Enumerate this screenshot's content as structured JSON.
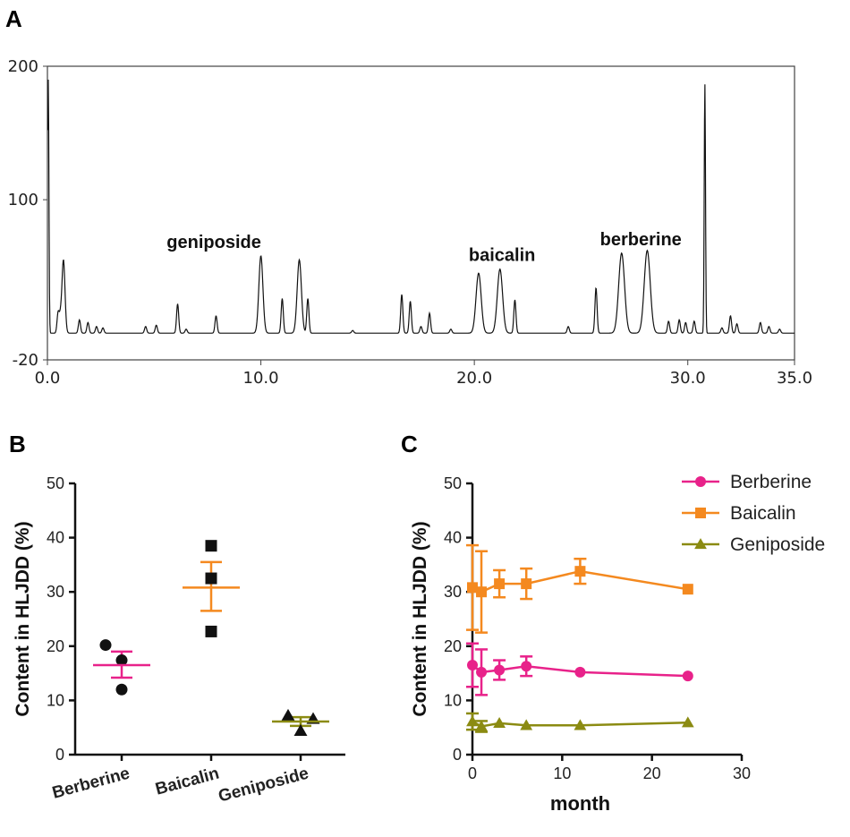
{
  "chart_data": [
    {
      "panel": "A",
      "type": "line",
      "title": "",
      "xlabel": "",
      "ylabel": "",
      "xlim": [
        0,
        35
      ],
      "ylim": [
        -20,
        200
      ],
      "xticks": [
        "0.0",
        "10.0",
        "20.0",
        "30.0",
        "35.0"
      ],
      "xtick_values": [
        0,
        10,
        20,
        30,
        35
      ],
      "yticks": [
        "-20",
        "100",
        "200"
      ],
      "ytick_values": [
        -20,
        100,
        200
      ],
      "baseline": 0,
      "peaks": [
        {
          "t": 0.5,
          "h": 15
        },
        {
          "t": 0.6,
          "h": 10
        },
        {
          "t": 0.75,
          "h": 55
        },
        {
          "t": 1.5,
          "h": 10
        },
        {
          "t": 1.9,
          "h": 8
        },
        {
          "t": 2.3,
          "h": 5
        },
        {
          "t": 2.6,
          "h": 4
        },
        {
          "t": 4.6,
          "h": 5
        },
        {
          "t": 5.1,
          "h": 6
        },
        {
          "t": 6.1,
          "h": 22
        },
        {
          "t": 6.5,
          "h": 3
        },
        {
          "t": 7.9,
          "h": 13
        },
        {
          "t": 10.0,
          "h": 58
        },
        {
          "t": 11.0,
          "h": 26
        },
        {
          "t": 11.8,
          "h": 55
        },
        {
          "t": 12.2,
          "h": 26
        },
        {
          "t": 14.3,
          "h": 2
        },
        {
          "t": 16.6,
          "h": 29
        },
        {
          "t": 17.0,
          "h": 24
        },
        {
          "t": 17.5,
          "h": 5
        },
        {
          "t": 17.9,
          "h": 15
        },
        {
          "t": 18.9,
          "h": 3
        },
        {
          "t": 20.2,
          "h": 45
        },
        {
          "t": 21.2,
          "h": 48
        },
        {
          "t": 21.9,
          "h": 25
        },
        {
          "t": 24.4,
          "h": 5
        },
        {
          "t": 25.7,
          "h": 34
        },
        {
          "t": 26.9,
          "h": 60
        },
        {
          "t": 28.1,
          "h": 62
        },
        {
          "t": 29.1,
          "h": 9
        },
        {
          "t": 29.6,
          "h": 10
        },
        {
          "t": 29.9,
          "h": 8
        },
        {
          "t": 30.3,
          "h": 9
        },
        {
          "t": 30.8,
          "h": 187
        },
        {
          "t": 31.6,
          "h": 4
        },
        {
          "t": 32.0,
          "h": 13
        },
        {
          "t": 32.3,
          "h": 7
        },
        {
          "t": 33.4,
          "h": 8
        },
        {
          "t": 33.8,
          "h": 5
        },
        {
          "t": 34.3,
          "h": 3
        }
      ],
      "annotations": [
        {
          "text": "geniposide",
          "t": 7.8,
          "y": 64
        },
        {
          "text": "baicalin",
          "t": 21.3,
          "y": 54
        },
        {
          "text": "berberine",
          "t": 27.8,
          "y": 66
        }
      ]
    },
    {
      "panel": "B",
      "type": "scatter",
      "title": "",
      "xlabel": "",
      "ylabel": "Content in HLJDD (%)",
      "ylim": [
        0,
        50
      ],
      "yticks": [
        0,
        10,
        20,
        30,
        40,
        50
      ],
      "categories": [
        "Berberine",
        "Baicalin",
        "Geniposide"
      ],
      "series": [
        {
          "name": "Berberine",
          "color": "#E8228A",
          "marker": "circle",
          "points": [
            20.2,
            17.4,
            12.0
          ],
          "mean": 16.5,
          "sem_upper": 19.0,
          "sem_lower": 14.2
        },
        {
          "name": "Baicalin",
          "color": "#F4891F",
          "marker": "square",
          "points": [
            38.5,
            32.5,
            22.7
          ],
          "mean": 30.8,
          "sem_upper": 35.5,
          "sem_lower": 26.5
        },
        {
          "name": "Geniposide",
          "color": "#8B8B12",
          "marker": "triangle",
          "points": [
            7.2,
            6.6,
            4.4
          ],
          "mean": 6.1,
          "sem_upper": 6.9,
          "sem_lower": 5.3
        }
      ]
    },
    {
      "panel": "C",
      "type": "line",
      "title": "",
      "xlabel": "month",
      "ylabel": "Content in HLJDD (%)",
      "xlim": [
        0,
        30
      ],
      "ylim": [
        0,
        50
      ],
      "xticks": [
        0,
        10,
        20,
        30
      ],
      "yticks": [
        0,
        10,
        20,
        30,
        40,
        50
      ],
      "x": [
        0,
        1,
        3,
        6,
        12,
        24
      ],
      "legend_position": "top-right",
      "series": [
        {
          "name": "Berberine",
          "color": "#E8228A",
          "marker": "circle",
          "values": [
            16.5,
            15.2,
            15.6,
            16.3,
            15.2,
            14.5
          ],
          "err": [
            4.0,
            4.2,
            1.8,
            1.8,
            0.3,
            0.3
          ]
        },
        {
          "name": "Baicalin",
          "color": "#F4891F",
          "marker": "square",
          "values": [
            30.8,
            30.0,
            31.5,
            31.5,
            33.8,
            30.5
          ],
          "err": [
            7.8,
            7.5,
            2.5,
            2.8,
            2.3,
            0.3
          ]
        },
        {
          "name": "Geniposide",
          "color": "#8B8B12",
          "marker": "triangle",
          "values": [
            6.1,
            5.2,
            5.8,
            5.4,
            5.4,
            5.9
          ],
          "err": [
            1.5,
            1.0,
            0.5,
            0.4,
            0.3,
            0.3
          ]
        }
      ]
    }
  ],
  "panels": {
    "a_label": "A",
    "b_label": "B",
    "c_label": "C"
  }
}
